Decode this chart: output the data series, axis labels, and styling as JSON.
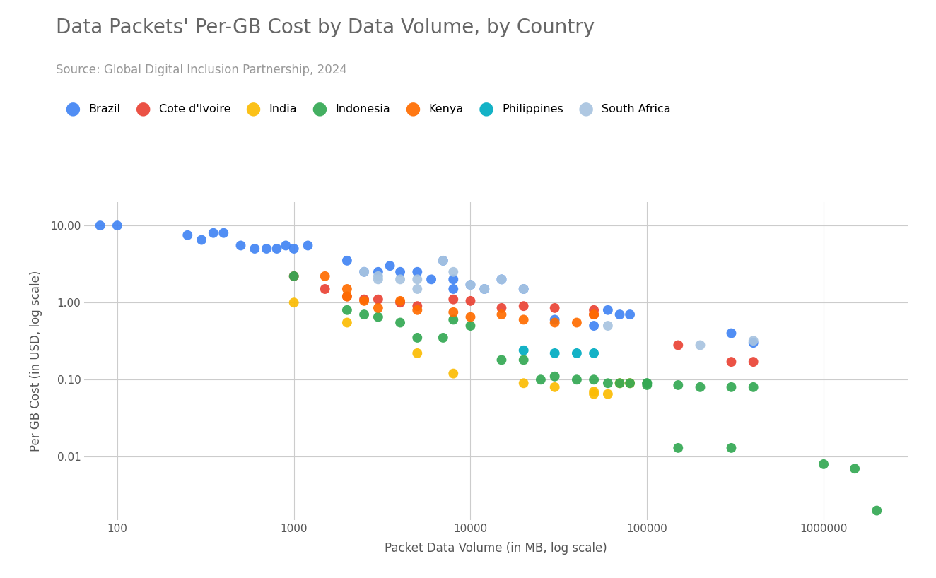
{
  "title": "Data Packets' Per-GB Cost by Data Volume, by Country",
  "subtitle": "Source: Global Digital Inclusion Partnership, 2024",
  "xlabel": "Packet Data Volume (in MB, log scale)",
  "ylabel": "Per GB Cost (in USD, log scale)",
  "background_color": "#ffffff",
  "title_color": "#666666",
  "subtitle_color": "#999999",
  "axis_label_color": "#555555",
  "tick_color": "#555555",
  "grid_color": "#cccccc",
  "countries": {
    "Brazil": {
      "color": "#4285F4",
      "data": [
        [
          80,
          10.0
        ],
        [
          100,
          10.0
        ],
        [
          250,
          7.5
        ],
        [
          300,
          6.5
        ],
        [
          350,
          8.0
        ],
        [
          400,
          8.0
        ],
        [
          500,
          5.5
        ],
        [
          600,
          5.0
        ],
        [
          700,
          5.0
        ],
        [
          800,
          5.0
        ],
        [
          900,
          5.5
        ],
        [
          1000,
          5.0
        ],
        [
          1200,
          5.5
        ],
        [
          2000,
          3.5
        ],
        [
          2500,
          2.5
        ],
        [
          3000,
          2.5
        ],
        [
          3500,
          3.0
        ],
        [
          4000,
          2.5
        ],
        [
          5000,
          2.5
        ],
        [
          6000,
          2.0
        ],
        [
          7000,
          3.5
        ],
        [
          8000,
          2.0
        ],
        [
          8000,
          1.5
        ],
        [
          10000,
          1.7
        ],
        [
          12000,
          1.5
        ],
        [
          15000,
          2.0
        ],
        [
          20000,
          1.5
        ],
        [
          30000,
          0.6
        ],
        [
          50000,
          0.5
        ],
        [
          60000,
          0.8
        ],
        [
          70000,
          0.7
        ],
        [
          80000,
          0.7
        ],
        [
          300000,
          0.4
        ],
        [
          400000,
          0.3
        ]
      ]
    },
    "Cote d'Ivoire": {
      "color": "#EA4335",
      "data": [
        [
          1000,
          2.2
        ],
        [
          1500,
          1.5
        ],
        [
          2000,
          1.2
        ],
        [
          2500,
          1.1
        ],
        [
          3000,
          1.1
        ],
        [
          4000,
          1.0
        ],
        [
          5000,
          0.9
        ],
        [
          8000,
          1.1
        ],
        [
          10000,
          1.05
        ],
        [
          15000,
          0.85
        ],
        [
          20000,
          0.9
        ],
        [
          30000,
          0.85
        ],
        [
          50000,
          0.8
        ],
        [
          50000,
          0.7
        ],
        [
          150000,
          0.28
        ],
        [
          300000,
          0.17
        ],
        [
          400000,
          0.17
        ]
      ]
    },
    "India": {
      "color": "#FBBC04",
      "data": [
        [
          1000,
          1.0
        ],
        [
          2000,
          0.55
        ],
        [
          5000,
          0.22
        ],
        [
          8000,
          0.12
        ],
        [
          20000,
          0.09
        ],
        [
          30000,
          0.08
        ],
        [
          50000,
          0.065
        ],
        [
          50000,
          0.07
        ],
        [
          60000,
          0.065
        ],
        [
          70000,
          0.09
        ],
        [
          80000,
          0.09
        ]
      ]
    },
    "Indonesia": {
      "color": "#34A853",
      "data": [
        [
          1000,
          2.2
        ],
        [
          2000,
          0.8
        ],
        [
          2500,
          0.7
        ],
        [
          3000,
          0.65
        ],
        [
          4000,
          0.55
        ],
        [
          5000,
          0.35
        ],
        [
          7000,
          0.35
        ],
        [
          8000,
          0.6
        ],
        [
          10000,
          0.5
        ],
        [
          15000,
          0.18
        ],
        [
          20000,
          0.18
        ],
        [
          25000,
          0.1
        ],
        [
          30000,
          0.11
        ],
        [
          40000,
          0.1
        ],
        [
          50000,
          0.1
        ],
        [
          60000,
          0.09
        ],
        [
          70000,
          0.09
        ],
        [
          80000,
          0.09
        ],
        [
          100000,
          0.09
        ],
        [
          100000,
          0.085
        ],
        [
          100000,
          0.09
        ],
        [
          150000,
          0.085
        ],
        [
          200000,
          0.08
        ],
        [
          300000,
          0.08
        ],
        [
          400000,
          0.08
        ],
        [
          150000,
          0.013
        ],
        [
          300000,
          0.013
        ],
        [
          1000000,
          0.008
        ],
        [
          1500000,
          0.007
        ],
        [
          2000000,
          0.002
        ]
      ]
    },
    "Kenya": {
      "color": "#FF6D00",
      "data": [
        [
          1500,
          2.2
        ],
        [
          2000,
          1.5
        ],
        [
          2000,
          1.2
        ],
        [
          2500,
          1.05
        ],
        [
          3000,
          0.85
        ],
        [
          4000,
          1.05
        ],
        [
          5000,
          0.8
        ],
        [
          8000,
          0.75
        ],
        [
          10000,
          0.65
        ],
        [
          15000,
          0.7
        ],
        [
          20000,
          0.6
        ],
        [
          30000,
          0.55
        ],
        [
          40000,
          0.55
        ],
        [
          50000,
          0.7
        ]
      ]
    },
    "Philippines": {
      "color": "#00ACC1",
      "data": [
        [
          20000,
          0.24
        ],
        [
          30000,
          0.22
        ],
        [
          40000,
          0.22
        ],
        [
          50000,
          0.22
        ]
      ]
    },
    "South Africa": {
      "color": "#A8C4E0",
      "data": [
        [
          2500,
          2.5
        ],
        [
          3000,
          2.0
        ],
        [
          3000,
          2.2
        ],
        [
          4000,
          2.0
        ],
        [
          5000,
          2.0
        ],
        [
          5000,
          1.5
        ],
        [
          7000,
          3.5
        ],
        [
          8000,
          2.5
        ],
        [
          10000,
          1.7
        ],
        [
          12000,
          1.5
        ],
        [
          15000,
          2.0
        ],
        [
          20000,
          1.5
        ],
        [
          60000,
          0.5
        ],
        [
          200000,
          0.28
        ],
        [
          400000,
          0.32
        ]
      ]
    }
  }
}
